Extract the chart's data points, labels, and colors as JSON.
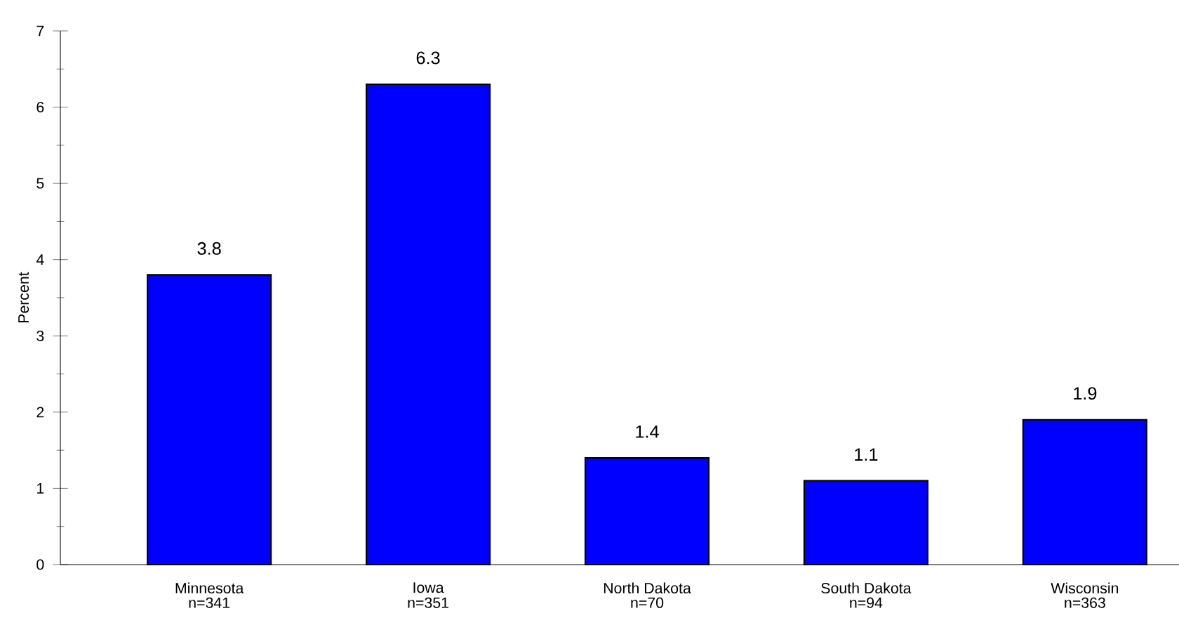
{
  "chart_data": {
    "type": "bar",
    "ylabel": "Percent",
    "categories": [
      "Minnesota",
      "Iowa",
      "North Dakota",
      "South Dakota",
      "Wisconsin"
    ],
    "values": [
      3.8,
      6.3,
      1.4,
      1.1,
      1.9
    ],
    "color": "#0000ff",
    "ylim": [
      0,
      7
    ],
    "yticks": [
      0,
      1,
      2,
      3,
      4,
      5,
      6,
      7
    ],
    "data_labels": true,
    "grid": false,
    "annotations": [
      "n=341",
      "n=351",
      "n=70",
      "n=94",
      "n=363"
    ]
  }
}
